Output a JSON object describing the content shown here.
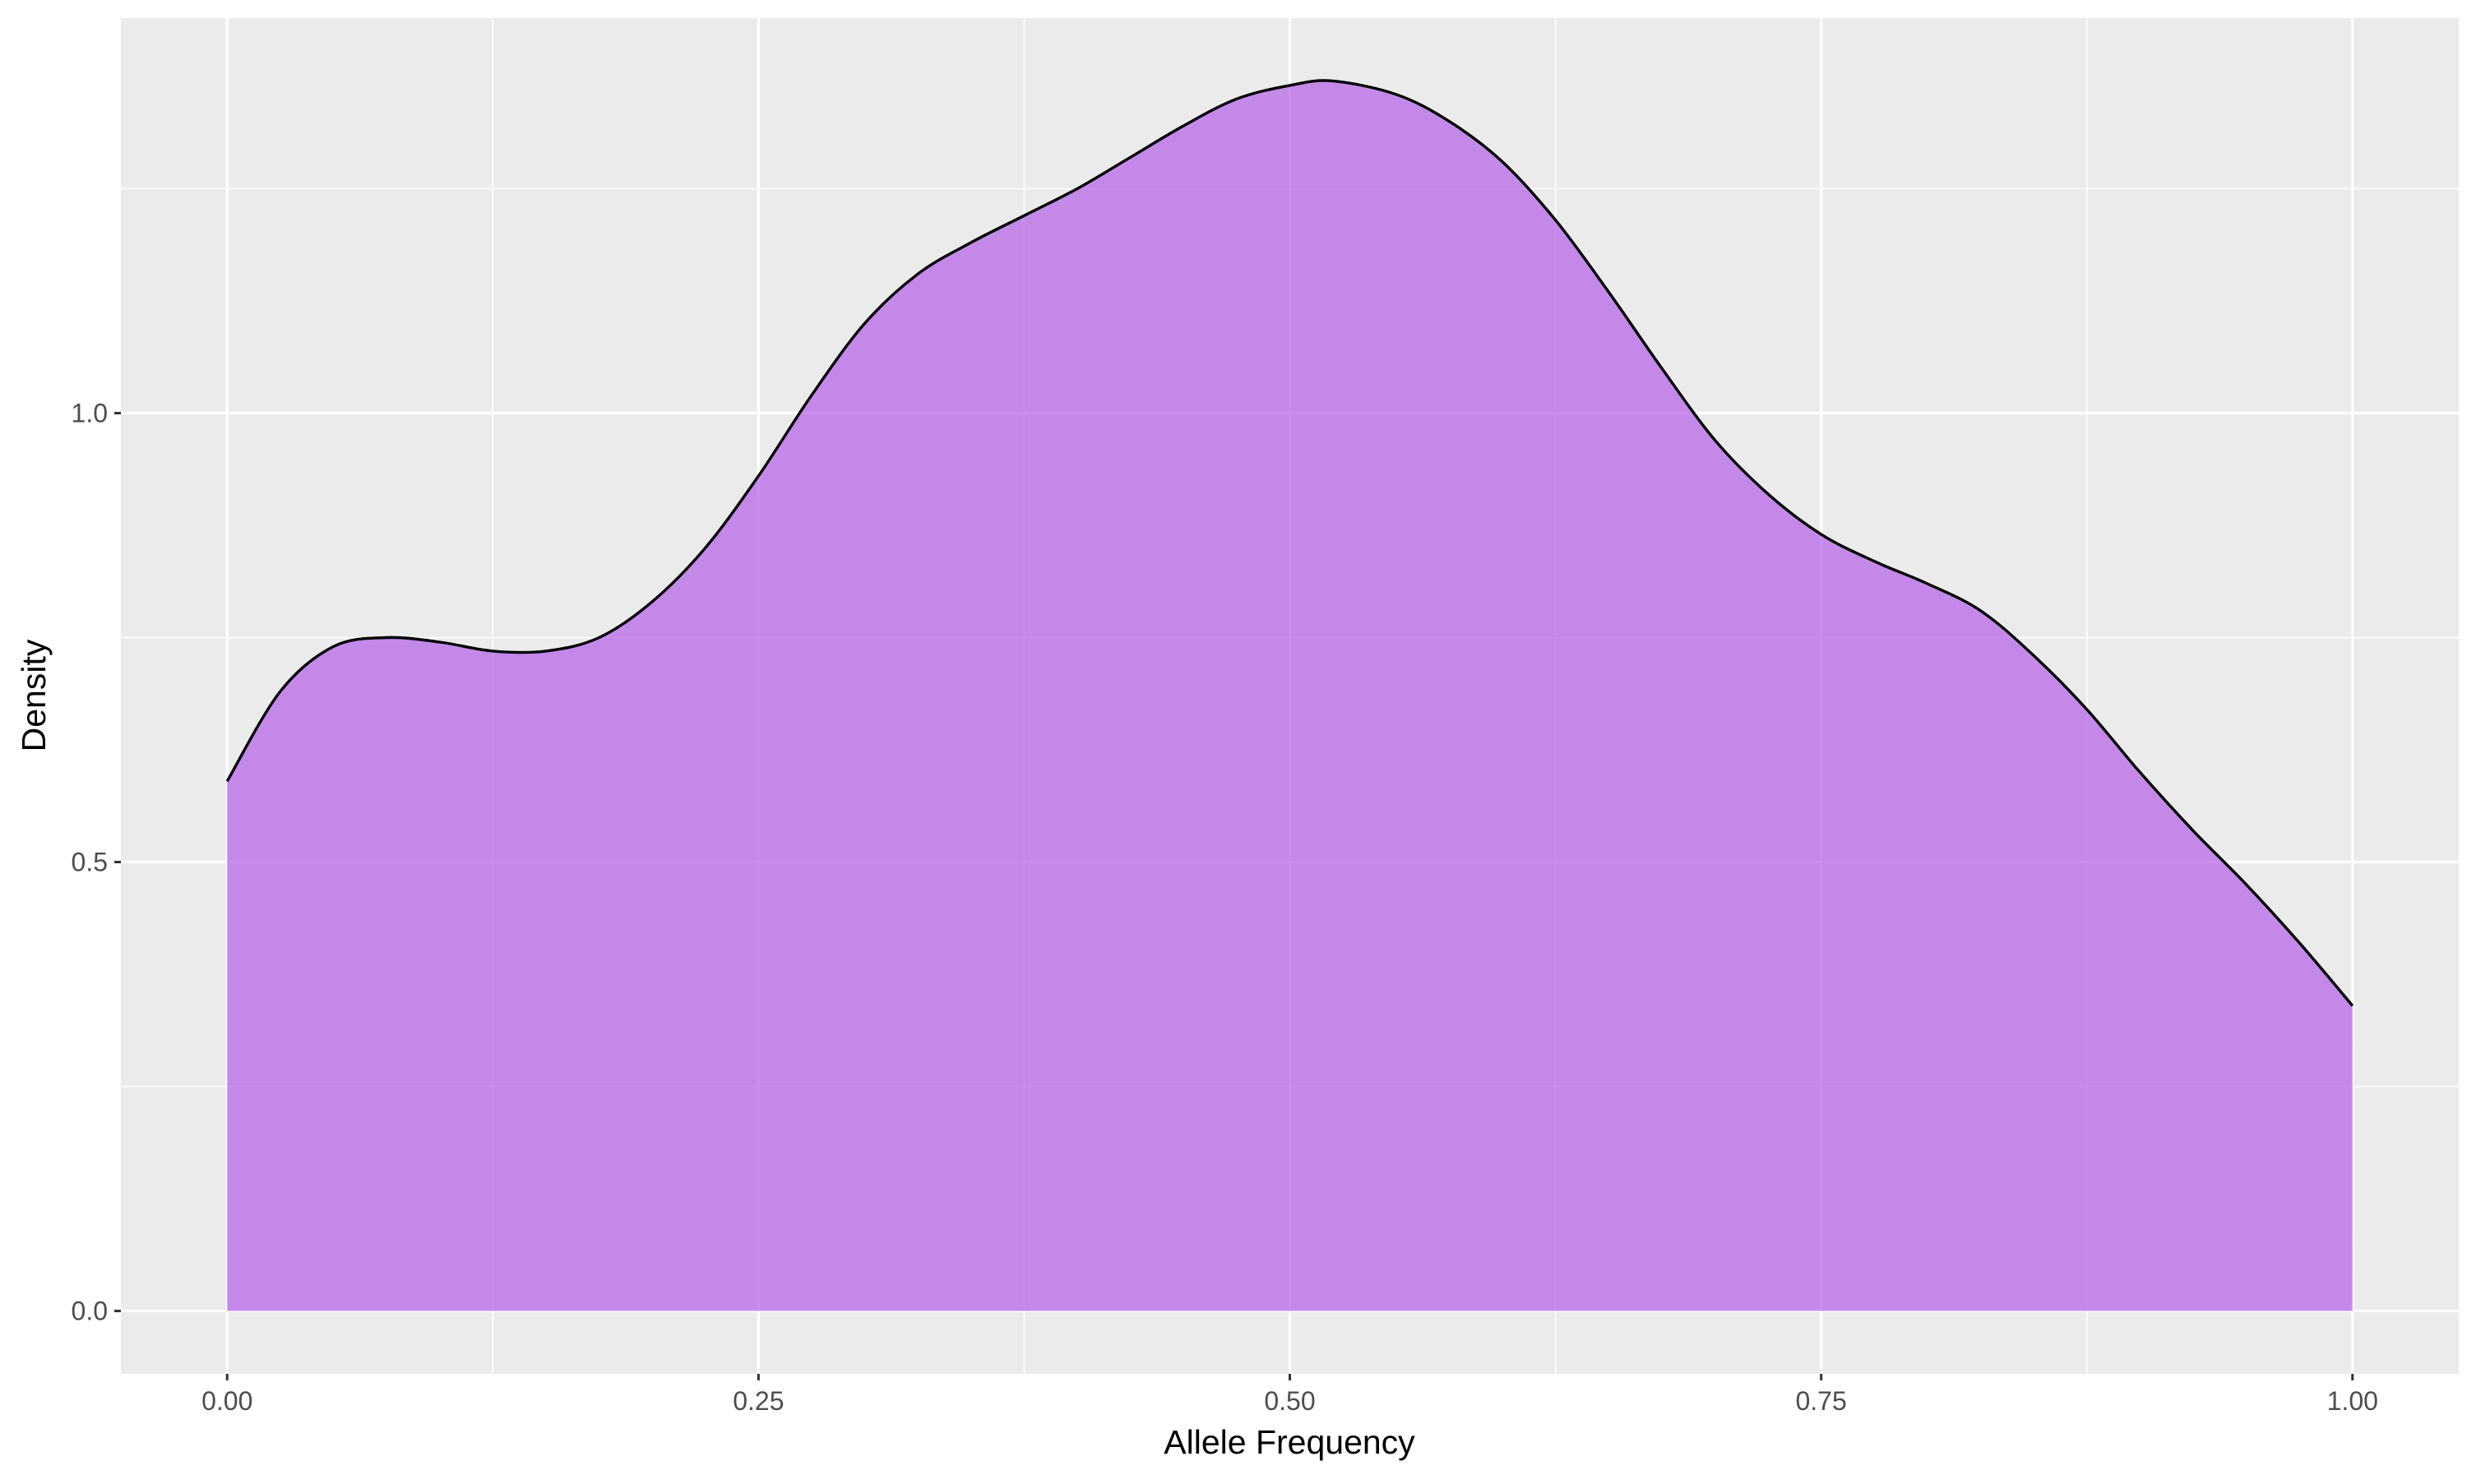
{
  "chart_data": {
    "type": "area",
    "title": "",
    "xlabel": "Allele Frequency",
    "ylabel": "Density",
    "xlim": [
      -0.05,
      1.05
    ],
    "ylim": [
      -0.07,
      1.44
    ],
    "x_ticks": [
      0.0,
      0.25,
      0.5,
      0.75,
      1.0
    ],
    "x_tick_labels": [
      "0.00",
      "0.25",
      "0.50",
      "0.75",
      "1.00"
    ],
    "x_minor_ticks": [
      0.125,
      0.375,
      0.625,
      0.875
    ],
    "y_ticks": [
      0.0,
      0.5,
      1.0
    ],
    "y_tick_labels": [
      "0.0",
      "0.5",
      "1.0"
    ],
    "y_minor_ticks": [
      0.25,
      0.75,
      1.25
    ],
    "grid": true,
    "legend": "none",
    "colors": {
      "panel_background": "#ebebeb",
      "grid_line": "#ffffff",
      "fill": "#b45ee8",
      "fill_opacity": 0.7,
      "outline": "#000000",
      "tick_mark": "#333333"
    },
    "series": [
      {
        "x": [
          0.0,
          0.025,
          0.05,
          0.075,
          0.1,
          0.125,
          0.15,
          0.175,
          0.2,
          0.225,
          0.25,
          0.275,
          0.3,
          0.325,
          0.35,
          0.375,
          0.4,
          0.425,
          0.45,
          0.475,
          0.5,
          0.52,
          0.55,
          0.575,
          0.6,
          0.625,
          0.65,
          0.675,
          0.7,
          0.725,
          0.75,
          0.775,
          0.8,
          0.825,
          0.85,
          0.875,
          0.9,
          0.925,
          0.95,
          0.975,
          1.0
        ],
        "y": [
          0.59,
          0.69,
          0.74,
          0.75,
          0.745,
          0.735,
          0.735,
          0.75,
          0.79,
          0.85,
          0.93,
          1.02,
          1.1,
          1.155,
          1.19,
          1.22,
          1.25,
          1.285,
          1.32,
          1.35,
          1.365,
          1.37,
          1.355,
          1.325,
          1.28,
          1.215,
          1.135,
          1.05,
          0.97,
          0.91,
          0.865,
          0.835,
          0.81,
          0.78,
          0.73,
          0.67,
          0.6,
          0.535,
          0.475,
          0.41,
          0.34
        ]
      }
    ]
  }
}
